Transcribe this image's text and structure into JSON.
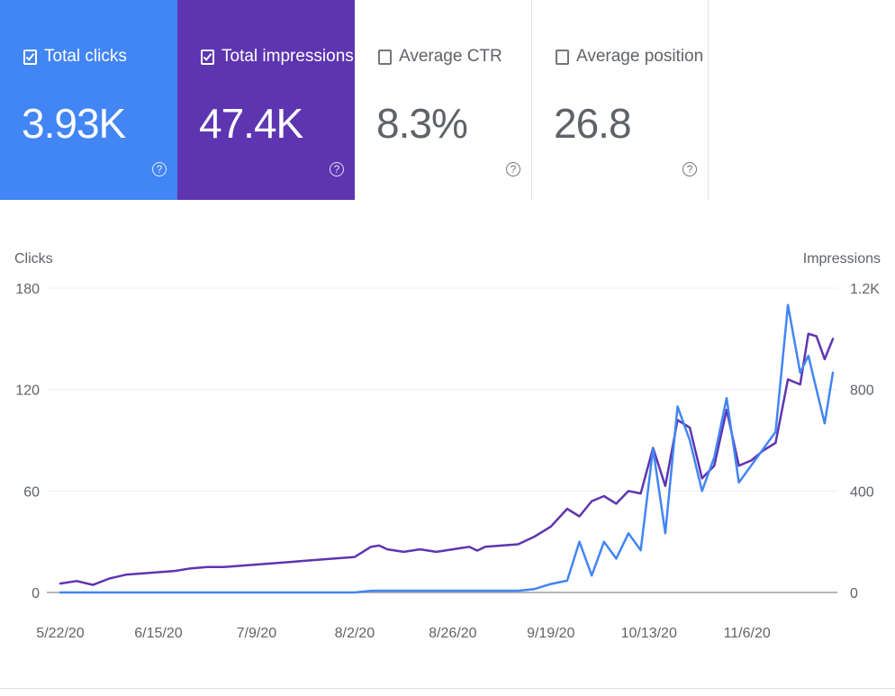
{
  "metrics": [
    {
      "label": "Total clicks",
      "value": "3.93K",
      "checked": true,
      "color": "#4285f4"
    },
    {
      "label": "Total impressions",
      "value": "47.4K",
      "checked": true,
      "color": "#5e35b1"
    },
    {
      "label": "Average CTR",
      "value": "8.3%",
      "checked": false,
      "color": "#ffffff"
    },
    {
      "label": "Average position",
      "value": "26.8",
      "checked": false,
      "color": "#ffffff"
    }
  ],
  "help_glyph": "?",
  "chart_data": {
    "type": "line",
    "title": "",
    "left_axis": {
      "label": "Clicks",
      "ylim": [
        0,
        180
      ],
      "ticks": [
        "0",
        "60",
        "120",
        "180"
      ]
    },
    "right_axis": {
      "label": "Impressions",
      "ylim": [
        0,
        1200
      ],
      "ticks": [
        "0",
        "400",
        "800",
        "1.2K"
      ]
    },
    "x_ticks": [
      "5/22/20",
      "6/15/20",
      "7/9/20",
      "8/2/20",
      "8/26/20",
      "9/19/20",
      "10/13/20",
      "11/6/20"
    ],
    "x_tick_days": [
      0,
      24,
      48,
      72,
      96,
      120,
      144,
      168
    ],
    "grid": true,
    "series": [
      {
        "name": "Total impressions",
        "axis": "right",
        "color": "#5e35b1",
        "x": [
          0,
          4,
          8,
          12,
          16,
          20,
          24,
          28,
          32,
          36,
          40,
          44,
          48,
          52,
          56,
          60,
          64,
          68,
          72,
          76,
          78,
          80,
          84,
          88,
          92,
          96,
          100,
          102,
          104,
          108,
          112,
          116,
          120,
          124,
          127,
          130,
          133,
          136,
          139,
          142,
          145,
          148,
          151,
          154,
          157,
          160,
          163,
          166,
          169,
          172,
          175,
          178,
          181,
          183,
          185,
          187,
          189
        ],
        "values": [
          35,
          45,
          30,
          55,
          70,
          75,
          80,
          85,
          95,
          100,
          100,
          105,
          110,
          115,
          120,
          125,
          130,
          135,
          140,
          180,
          185,
          170,
          160,
          170,
          160,
          170,
          180,
          165,
          180,
          185,
          190,
          220,
          260,
          330,
          300,
          360,
          380,
          350,
          400,
          390,
          570,
          420,
          680,
          650,
          450,
          500,
          720,
          500,
          520,
          560,
          590,
          840,
          820,
          1020,
          1010,
          920,
          1000
        ]
      },
      {
        "name": "Total clicks",
        "axis": "left",
        "color": "#4285f4",
        "x": [
          0,
          4,
          8,
          12,
          16,
          20,
          24,
          28,
          32,
          36,
          40,
          44,
          48,
          52,
          56,
          60,
          64,
          68,
          72,
          76,
          78,
          80,
          84,
          88,
          92,
          96,
          100,
          102,
          104,
          108,
          112,
          116,
          120,
          124,
          127,
          130,
          133,
          136,
          139,
          142,
          145,
          148,
          151,
          154,
          157,
          160,
          163,
          166,
          169,
          172,
          175,
          178,
          181,
          183,
          185,
          187,
          189
        ],
        "values": [
          0,
          0,
          0,
          0,
          0,
          0,
          0,
          0,
          0,
          0,
          0,
          0,
          0,
          0,
          0,
          0,
          0,
          0,
          0,
          1,
          1,
          1,
          1,
          1,
          1,
          1,
          1,
          1,
          1,
          1,
          1,
          2,
          5,
          7,
          30,
          10,
          30,
          20,
          35,
          25,
          85,
          35,
          110,
          90,
          60,
          80,
          115,
          65,
          75,
          85,
          95,
          170,
          130,
          140,
          120,
          100,
          130
        ]
      }
    ]
  }
}
